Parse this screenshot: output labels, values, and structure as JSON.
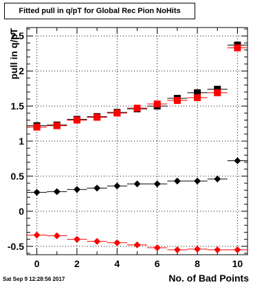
{
  "title": "Fitted pull in q/pT for Global Rec Pion NoHits",
  "timestamp": "Sat Sep  9 12:28:56 2017",
  "chart_data": {
    "type": "scatter",
    "xlabel": "No. of Bad Points",
    "ylabel": "pull in q/pT",
    "xlim": [
      -0.5,
      10.5
    ],
    "ylim": [
      -0.62,
      2.62
    ],
    "x_ticks": [
      "0",
      "2",
      "4",
      "6",
      "8",
      "10"
    ],
    "y_ticks": [
      "-0.5",
      "0",
      "0.5",
      "1",
      "1.5",
      "2",
      "2.5"
    ],
    "grid": true,
    "series": [
      {
        "marker": "square",
        "color": "#000000",
        "x": [
          0,
          1,
          2,
          3,
          4,
          5,
          6,
          7,
          8,
          9,
          10
        ],
        "y": [
          1.22,
          1.23,
          1.31,
          1.35,
          1.41,
          1.46,
          1.5,
          1.61,
          1.69,
          1.74,
          2.37
        ]
      },
      {
        "marker": "square",
        "color": "#ff0000",
        "x": [
          0,
          1,
          2,
          3,
          4,
          5,
          6,
          7,
          8,
          9,
          10
        ],
        "y": [
          1.2,
          1.22,
          1.3,
          1.34,
          1.4,
          1.47,
          1.53,
          1.58,
          1.62,
          1.69,
          2.33
        ]
      },
      {
        "marker": "diamond",
        "color": "#000000",
        "x": [
          0,
          1,
          2,
          3,
          4,
          5,
          6,
          7,
          8,
          9,
          10
        ],
        "y": [
          0.27,
          0.28,
          0.31,
          0.33,
          0.36,
          0.39,
          0.39,
          0.43,
          0.43,
          0.46,
          0.72
        ]
      },
      {
        "marker": "diamond",
        "color": "#ff0000",
        "x": [
          0,
          1,
          2,
          3,
          4,
          5,
          6,
          7,
          8,
          9,
          10
        ],
        "y": [
          -0.34,
          -0.35,
          -0.4,
          -0.43,
          -0.45,
          -0.48,
          -0.52,
          -0.55,
          -0.54,
          -0.55,
          -0.55
        ]
      }
    ]
  }
}
